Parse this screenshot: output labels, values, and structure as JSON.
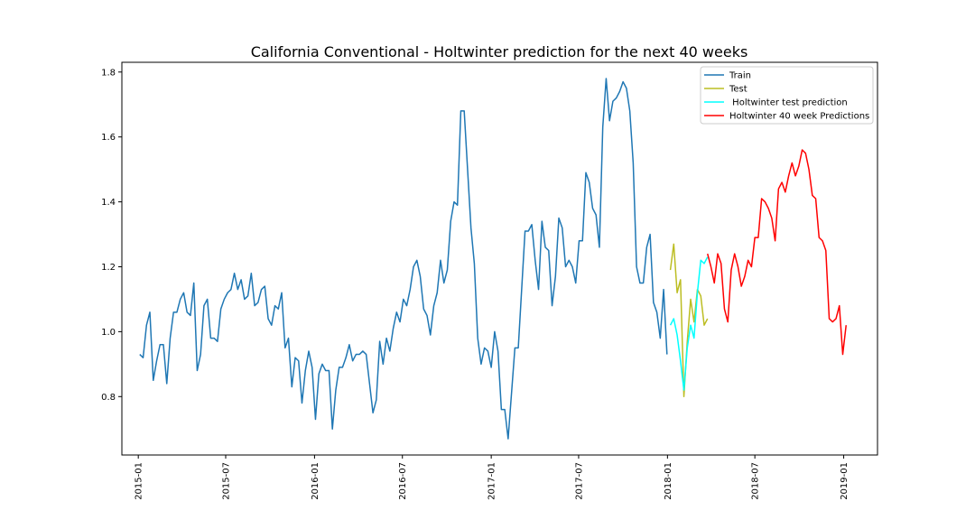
{
  "chart_data": {
    "type": "line",
    "title": "California Conventional - Holtwinter prediction for the next 40 weeks",
    "xlabel": "",
    "ylabel": "",
    "x_ticks": [
      "2015-01",
      "2015-07",
      "2016-01",
      "2016-07",
      "2017-01",
      "2017-07",
      "2018-01",
      "2018-07",
      "2019-01"
    ],
    "y_ticks": [
      "0.8",
      "1.0",
      "1.2",
      "1.4",
      "1.6",
      "1.8"
    ],
    "xlim": [
      "2014-11-28",
      "2019-03-12"
    ],
    "ylim": [
      0.62,
      1.83
    ],
    "grid": false,
    "legend_position": "top-right",
    "series": [
      {
        "name": "Train",
        "color": "#1f77b4",
        "points": [
          [
            "2015-01-04",
            0.93
          ],
          [
            "2015-01-11",
            0.92
          ],
          [
            "2015-01-18",
            1.02
          ],
          [
            "2015-01-25",
            1.06
          ],
          [
            "2015-02-01",
            0.85
          ],
          [
            "2015-02-08",
            0.91
          ],
          [
            "2015-02-15",
            0.96
          ],
          [
            "2015-02-22",
            0.96
          ],
          [
            "2015-03-01",
            0.84
          ],
          [
            "2015-03-08",
            0.98
          ],
          [
            "2015-03-15",
            1.06
          ],
          [
            "2015-03-22",
            1.06
          ],
          [
            "2015-03-29",
            1.1
          ],
          [
            "2015-04-05",
            1.12
          ],
          [
            "2015-04-12",
            1.06
          ],
          [
            "2015-04-19",
            1.05
          ],
          [
            "2015-04-26",
            1.15
          ],
          [
            "2015-05-03",
            0.88
          ],
          [
            "2015-05-10",
            0.93
          ],
          [
            "2015-05-17",
            1.08
          ],
          [
            "2015-05-24",
            1.1
          ],
          [
            "2015-05-31",
            0.98
          ],
          [
            "2015-06-07",
            0.98
          ],
          [
            "2015-06-14",
            0.97
          ],
          [
            "2015-06-21",
            1.07
          ],
          [
            "2015-06-28",
            1.1
          ],
          [
            "2015-07-05",
            1.12
          ],
          [
            "2015-07-12",
            1.13
          ],
          [
            "2015-07-19",
            1.18
          ],
          [
            "2015-07-26",
            1.13
          ],
          [
            "2015-08-02",
            1.16
          ],
          [
            "2015-08-09",
            1.1
          ],
          [
            "2015-08-16",
            1.11
          ],
          [
            "2015-08-23",
            1.18
          ],
          [
            "2015-08-30",
            1.08
          ],
          [
            "2015-09-06",
            1.09
          ],
          [
            "2015-09-13",
            1.13
          ],
          [
            "2015-09-20",
            1.14
          ],
          [
            "2015-09-27",
            1.04
          ],
          [
            "2015-10-04",
            1.02
          ],
          [
            "2015-10-11",
            1.08
          ],
          [
            "2015-10-18",
            1.07
          ],
          [
            "2015-10-25",
            1.12
          ],
          [
            "2015-11-01",
            0.95
          ],
          [
            "2015-11-08",
            0.98
          ],
          [
            "2015-11-15",
            0.83
          ],
          [
            "2015-11-22",
            0.92
          ],
          [
            "2015-11-29",
            0.91
          ],
          [
            "2015-12-06",
            0.78
          ],
          [
            "2015-12-13",
            0.88
          ],
          [
            "2015-12-20",
            0.94
          ],
          [
            "2015-12-27",
            0.89
          ],
          [
            "2016-01-03",
            0.73
          ],
          [
            "2016-01-10",
            0.87
          ],
          [
            "2016-01-17",
            0.9
          ],
          [
            "2016-01-24",
            0.88
          ],
          [
            "2016-01-31",
            0.88
          ],
          [
            "2016-02-07",
            0.7
          ],
          [
            "2016-02-14",
            0.82
          ],
          [
            "2016-02-21",
            0.89
          ],
          [
            "2016-02-28",
            0.89
          ],
          [
            "2016-03-06",
            0.92
          ],
          [
            "2016-03-13",
            0.96
          ],
          [
            "2016-03-20",
            0.91
          ],
          [
            "2016-03-27",
            0.93
          ],
          [
            "2016-04-03",
            0.93
          ],
          [
            "2016-04-10",
            0.94
          ],
          [
            "2016-04-17",
            0.93
          ],
          [
            "2016-04-24",
            0.84
          ],
          [
            "2016-05-01",
            0.75
          ],
          [
            "2016-05-08",
            0.79
          ],
          [
            "2016-05-15",
            0.97
          ],
          [
            "2016-05-22",
            0.9
          ],
          [
            "2016-05-29",
            0.98
          ],
          [
            "2016-06-05",
            0.94
          ],
          [
            "2016-06-12",
            1.01
          ],
          [
            "2016-06-19",
            1.06
          ],
          [
            "2016-06-26",
            1.03
          ],
          [
            "2016-07-03",
            1.1
          ],
          [
            "2016-07-10",
            1.08
          ],
          [
            "2016-07-17",
            1.13
          ],
          [
            "2016-07-24",
            1.2
          ],
          [
            "2016-07-31",
            1.22
          ],
          [
            "2016-08-07",
            1.17
          ],
          [
            "2016-08-14",
            1.07
          ],
          [
            "2016-08-21",
            1.05
          ],
          [
            "2016-08-28",
            0.99
          ],
          [
            "2016-09-04",
            1.08
          ],
          [
            "2016-09-11",
            1.12
          ],
          [
            "2016-09-18",
            1.22
          ],
          [
            "2016-09-25",
            1.15
          ],
          [
            "2016-10-02",
            1.19
          ],
          [
            "2016-10-09",
            1.34
          ],
          [
            "2016-10-16",
            1.4
          ],
          [
            "2016-10-23",
            1.39
          ],
          [
            "2016-10-30",
            1.68
          ],
          [
            "2016-11-06",
            1.68
          ],
          [
            "2016-11-13",
            1.5
          ],
          [
            "2016-11-20",
            1.32
          ],
          [
            "2016-11-27",
            1.21
          ],
          [
            "2016-12-04",
            0.98
          ],
          [
            "2016-12-11",
            0.9
          ],
          [
            "2016-12-18",
            0.95
          ],
          [
            "2016-12-25",
            0.94
          ],
          [
            "2017-01-01",
            0.89
          ],
          [
            "2017-01-08",
            1.0
          ],
          [
            "2017-01-15",
            0.94
          ],
          [
            "2017-01-22",
            0.76
          ],
          [
            "2017-01-29",
            0.76
          ],
          [
            "2017-02-05",
            0.67
          ],
          [
            "2017-02-12",
            0.81
          ],
          [
            "2017-02-19",
            0.95
          ],
          [
            "2017-02-26",
            0.95
          ],
          [
            "2017-03-05",
            1.13
          ],
          [
            "2017-03-12",
            1.31
          ],
          [
            "2017-03-19",
            1.31
          ],
          [
            "2017-03-26",
            1.33
          ],
          [
            "2017-04-02",
            1.22
          ],
          [
            "2017-04-09",
            1.13
          ],
          [
            "2017-04-16",
            1.34
          ],
          [
            "2017-04-23",
            1.26
          ],
          [
            "2017-04-30",
            1.25
          ],
          [
            "2017-05-07",
            1.08
          ],
          [
            "2017-05-14",
            1.17
          ],
          [
            "2017-05-21",
            1.35
          ],
          [
            "2017-05-28",
            1.32
          ],
          [
            "2017-06-04",
            1.2
          ],
          [
            "2017-06-11",
            1.22
          ],
          [
            "2017-06-18",
            1.2
          ],
          [
            "2017-06-25",
            1.15
          ],
          [
            "2017-07-02",
            1.28
          ],
          [
            "2017-07-09",
            1.28
          ],
          [
            "2017-07-16",
            1.49
          ],
          [
            "2017-07-23",
            1.46
          ],
          [
            "2017-07-30",
            1.38
          ],
          [
            "2017-08-06",
            1.36
          ],
          [
            "2017-08-13",
            1.26
          ],
          [
            "2017-08-20",
            1.63
          ],
          [
            "2017-08-27",
            1.78
          ],
          [
            "2017-09-03",
            1.65
          ],
          [
            "2017-09-10",
            1.71
          ],
          [
            "2017-09-17",
            1.72
          ],
          [
            "2017-09-24",
            1.74
          ],
          [
            "2017-10-01",
            1.77
          ],
          [
            "2017-10-08",
            1.75
          ],
          [
            "2017-10-15",
            1.68
          ],
          [
            "2017-10-22",
            1.52
          ],
          [
            "2017-10-29",
            1.2
          ],
          [
            "2017-11-05",
            1.15
          ],
          [
            "2017-11-12",
            1.15
          ],
          [
            "2017-11-19",
            1.26
          ],
          [
            "2017-11-26",
            1.3
          ],
          [
            "2017-12-03",
            1.09
          ],
          [
            "2017-12-10",
            1.06
          ],
          [
            "2017-12-17",
            0.98
          ],
          [
            "2017-12-24",
            1.13
          ],
          [
            "2017-12-31",
            0.93
          ]
        ]
      },
      {
        "name": "Test",
        "color": "#bcbd22",
        "points": [
          [
            "2018-01-07",
            1.19
          ],
          [
            "2018-01-14",
            1.27
          ],
          [
            "2018-01-21",
            1.12
          ],
          [
            "2018-01-28",
            1.16
          ],
          [
            "2018-02-04",
            0.8
          ],
          [
            "2018-02-11",
            0.97
          ],
          [
            "2018-02-18",
            1.1
          ],
          [
            "2018-02-25",
            1.03
          ],
          [
            "2018-03-04",
            1.13
          ],
          [
            "2018-03-11",
            1.11
          ],
          [
            "2018-03-18",
            1.02
          ],
          [
            "2018-03-25",
            1.04
          ]
        ]
      },
      {
        "name": " Holtwinter test prediction",
        "color": "#00ffff",
        "points": [
          [
            "2018-01-07",
            1.02
          ],
          [
            "2018-01-14",
            1.04
          ],
          [
            "2018-01-21",
            0.99
          ],
          [
            "2018-01-28",
            0.91
          ],
          [
            "2018-02-04",
            0.82
          ],
          [
            "2018-02-11",
            0.95
          ],
          [
            "2018-02-18",
            1.02
          ],
          [
            "2018-02-25",
            0.98
          ],
          [
            "2018-03-04",
            1.12
          ],
          [
            "2018-03-11",
            1.22
          ],
          [
            "2018-03-18",
            1.21
          ],
          [
            "2018-03-25",
            1.23
          ]
        ]
      },
      {
        "name": "Holtwinter 40 week Predictions",
        "color": "#ff0000",
        "points": [
          [
            "2018-03-25",
            1.24
          ],
          [
            "2018-04-01",
            1.2
          ],
          [
            "2018-04-08",
            1.15
          ],
          [
            "2018-04-15",
            1.24
          ],
          [
            "2018-04-22",
            1.21
          ],
          [
            "2018-04-29",
            1.07
          ],
          [
            "2018-05-06",
            1.03
          ],
          [
            "2018-05-13",
            1.19
          ],
          [
            "2018-05-20",
            1.24
          ],
          [
            "2018-05-27",
            1.2
          ],
          [
            "2018-06-03",
            1.14
          ],
          [
            "2018-06-10",
            1.17
          ],
          [
            "2018-06-17",
            1.22
          ],
          [
            "2018-06-24",
            1.2
          ],
          [
            "2018-07-01",
            1.29
          ],
          [
            "2018-07-08",
            1.29
          ],
          [
            "2018-07-15",
            1.41
          ],
          [
            "2018-07-22",
            1.4
          ],
          [
            "2018-07-29",
            1.38
          ],
          [
            "2018-08-05",
            1.35
          ],
          [
            "2018-08-12",
            1.28
          ],
          [
            "2018-08-19",
            1.44
          ],
          [
            "2018-08-26",
            1.46
          ],
          [
            "2018-09-02",
            1.43
          ],
          [
            "2018-09-09",
            1.48
          ],
          [
            "2018-09-16",
            1.52
          ],
          [
            "2018-09-23",
            1.48
          ],
          [
            "2018-09-30",
            1.51
          ],
          [
            "2018-10-07",
            1.56
          ],
          [
            "2018-10-14",
            1.55
          ],
          [
            "2018-10-21",
            1.5
          ],
          [
            "2018-10-28",
            1.42
          ],
          [
            "2018-11-04",
            1.41
          ],
          [
            "2018-11-11",
            1.29
          ],
          [
            "2018-11-18",
            1.28
          ],
          [
            "2018-11-25",
            1.25
          ],
          [
            "2018-12-02",
            1.04
          ],
          [
            "2018-12-09",
            1.03
          ],
          [
            "2018-12-16",
            1.04
          ],
          [
            "2018-12-23",
            1.08
          ],
          [
            "2018-12-30",
            0.93
          ],
          [
            "2019-01-06",
            1.02
          ]
        ]
      }
    ]
  }
}
